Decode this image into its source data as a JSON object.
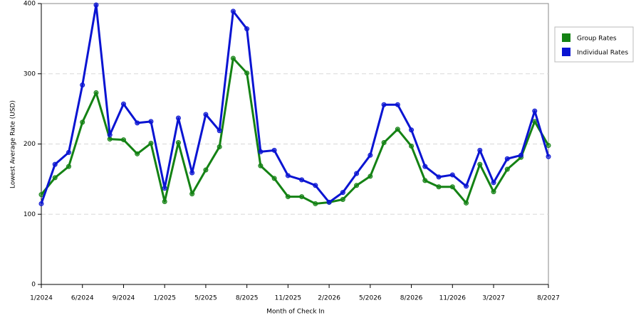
{
  "chart_data": {
    "type": "line",
    "x_label": "Month of Check In",
    "y_label": "Lowest Average Rate (USD)",
    "categories": [
      "1/2024",
      null,
      null,
      "6/2024",
      null,
      null,
      "9/2024",
      null,
      null,
      "1/2025",
      null,
      null,
      "5/2025",
      null,
      null,
      "8/2025",
      null,
      null,
      "11/2025",
      null,
      null,
      "2/2026",
      null,
      null,
      "5/2026",
      null,
      null,
      "8/2026",
      null,
      null,
      "11/2026",
      null,
      null,
      "3/2027",
      null,
      null,
      null,
      "8/2027"
    ],
    "series": [
      {
        "name": "Group Rates",
        "color": "#148214",
        "values": [
          128,
          152,
          168,
          231,
          273,
          207,
          206,
          186,
          201,
          118,
          202,
          129,
          163,
          196,
          322,
          301,
          169,
          151,
          125,
          125,
          115,
          117,
          121,
          141,
          154,
          202,
          221,
          197,
          148,
          139,
          139,
          116,
          171,
          132,
          164,
          181,
          232,
          198
        ]
      },
      {
        "name": "Individual Rates",
        "color": "#0a14d2",
        "values": [
          115,
          171,
          188,
          284,
          398,
          213,
          257,
          230,
          232,
          137,
          237,
          159,
          242,
          219,
          389,
          364,
          189,
          191,
          155,
          149,
          141,
          117,
          131,
          158,
          184,
          256,
          256,
          220,
          168,
          153,
          156,
          140,
          191,
          145,
          179,
          184,
          247,
          182
        ]
      }
    ],
    "ylim": [
      0,
      400
    ],
    "yticks": [
      0,
      100,
      200,
      300,
      400
    ],
    "grid": true,
    "legend": "right"
  }
}
